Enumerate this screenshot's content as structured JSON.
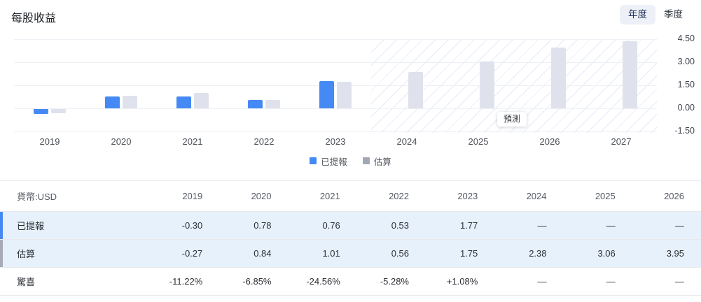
{
  "header": {
    "title": "每股收益",
    "toggles": [
      {
        "label": "年度",
        "active": true
      },
      {
        "label": "季度",
        "active": false
      }
    ]
  },
  "colors": {
    "reported_blue": "#4589f5",
    "estimate_bar_gray": "#dfe2ec",
    "legend_gray": "#a2a8b3",
    "row_highlight_bg": "#e6f1fc",
    "indicator_gray": "#a6abb5",
    "negative_red": "#e5424d",
    "positive_green": "#12a182",
    "toggle_active_bg": "#eef0f8"
  },
  "chart_data": {
    "type": "bar",
    "title": "每股收益",
    "categories": [
      "2019",
      "2020",
      "2021",
      "2022",
      "2023",
      "2024",
      "2025",
      "2026",
      "2027"
    ],
    "series": [
      {
        "name": "已提報",
        "color": "#4589f5",
        "values": [
          -0.3,
          0.78,
          0.76,
          0.53,
          1.77,
          null,
          null,
          null,
          null
        ]
      },
      {
        "name": "估算",
        "color": "#dfe2ec",
        "legend_color": "#a2a8b3",
        "values": [
          -0.27,
          0.84,
          1.01,
          0.56,
          1.75,
          2.38,
          3.06,
          3.95,
          4.38
        ]
      }
    ],
    "y_ticks": [
      "4.50",
      "3.00",
      "1.50",
      "0.00",
      "-1.50"
    ],
    "y_tick_values": [
      4.5,
      3.0,
      1.5,
      0.0,
      -1.5
    ],
    "ylim": [
      -1.59,
      4.5
    ],
    "grid": true,
    "legend_position": "bottom",
    "forecast_start_index": 5,
    "forecast_label": "預測"
  },
  "table": {
    "currency_label": "貨幣:USD",
    "years": [
      "2019",
      "2020",
      "2021",
      "2022",
      "2023",
      "2024",
      "2025",
      "2026"
    ],
    "rows": [
      {
        "label": "已提報",
        "highlight": true,
        "indicator": "#4589f5",
        "values": [
          "-0.30",
          "0.78",
          "0.76",
          "0.53",
          "1.77",
          "—",
          "—",
          "—"
        ]
      },
      {
        "label": "估算",
        "highlight": true,
        "indicator": "#a6abb5",
        "values": [
          "-0.27",
          "0.84",
          "1.01",
          "0.56",
          "1.75",
          "2.38",
          "3.06",
          "3.95"
        ]
      },
      {
        "label": "驚喜",
        "highlight": false,
        "indicator": null,
        "values": [
          "-11.22%",
          "-6.85%",
          "-24.56%",
          "-5.28%",
          "+1.08%",
          "—",
          "—",
          "—"
        ]
      }
    ]
  }
}
